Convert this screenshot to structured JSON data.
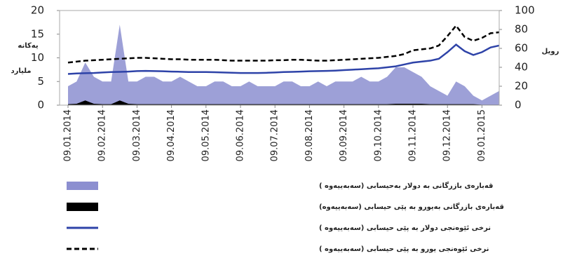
{
  "chart_data": {
    "type": "area-line",
    "y_label_lines": [
      "یەکانە",
      "ملیارد"
    ],
    "y2_label": "رویل",
    "categories": [
      "09.01.2014",
      null,
      null,
      null,
      "09.02.2014",
      null,
      null,
      null,
      "09.03.2014",
      null,
      null,
      null,
      "09.04.2014",
      null,
      null,
      null,
      "09.05.2014",
      null,
      null,
      null,
      "09.06.2014",
      null,
      null,
      null,
      "09.07.2014",
      null,
      null,
      null,
      "09.08.2014",
      null,
      null,
      null,
      "09.09.2014",
      null,
      null,
      null,
      "09.10.2014",
      null,
      null,
      null,
      "09.11.2014",
      null,
      null,
      null,
      "09.12.2014",
      null,
      null,
      null,
      "09.01.2015",
      null,
      null
    ],
    "ylim": [
      0,
      20
    ],
    "yticks": [
      0,
      5,
      10,
      15,
      20
    ],
    "y2lim": [
      0,
      100
    ],
    "y2ticks": [
      0,
      20,
      40,
      60,
      80,
      100
    ],
    "series": [
      {
        "name": "قەبارەی بازرگانی بە دولار بەحیسابی (سەبەییەوە )",
        "kind": "area",
        "color": "#8c8fd0",
        "values": [
          4,
          5,
          9,
          6,
          5,
          5,
          17,
          5,
          5,
          6,
          6,
          5,
          5,
          6,
          5,
          4,
          4,
          5,
          5,
          4,
          4,
          5,
          4,
          4,
          4,
          5,
          5,
          4,
          4,
          5,
          4,
          5,
          5,
          5,
          6,
          5,
          5,
          6,
          8,
          8,
          7,
          6,
          4,
          3,
          2,
          5,
          4,
          2,
          1,
          2,
          3
        ]
      },
      {
        "name": "قەبارەی بازرگانی بەیورو بە پێی حیسابی (سەبەییەوە)",
        "kind": "area",
        "color": "#000000",
        "values": [
          0.2,
          0.3,
          1,
          0.3,
          0.2,
          0.2,
          1,
          0.3,
          0.2,
          0.2,
          0.2,
          0.2,
          0.2,
          0.2,
          0.2,
          0.2,
          0.2,
          0.2,
          0.2,
          0.2,
          0.2,
          0.2,
          0.2,
          0.2,
          0.2,
          0.2,
          0.2,
          0.2,
          0.2,
          0.2,
          0.2,
          0.2,
          0.2,
          0.2,
          0.2,
          0.2,
          0.2,
          0.2,
          0.3,
          0.3,
          0.3,
          0.3,
          0.2,
          0.2,
          0.2,
          0.2,
          0.2,
          0.2,
          0.1,
          0.1,
          0.1
        ]
      },
      {
        "name": "نرخی ئێوەنجی دولار بە پێی حیسابی (سەبەییەوە )",
        "kind": "line",
        "axis": "y2",
        "color": "#2e43a8",
        "values": [
          33,
          33.5,
          33.8,
          34,
          34.5,
          35,
          35.2,
          35.5,
          36,
          36.2,
          36,
          35.8,
          35.5,
          35.3,
          35,
          35,
          35,
          34.8,
          34.5,
          34.3,
          34,
          34,
          34,
          34.2,
          34.5,
          35,
          35.2,
          35.5,
          35.8,
          36,
          36.2,
          36.5,
          37,
          37.5,
          38,
          38.5,
          39,
          40,
          41,
          43,
          45,
          46,
          47,
          49,
          56,
          64,
          57,
          53,
          56,
          61,
          63
        ]
      },
      {
        "name": "نرخی ئێوەنجی یورو بە پێی حیسابی (سەبەییەوە )",
        "kind": "dashed",
        "axis": "y2",
        "color": "#000000",
        "values": [
          45,
          46,
          47,
          47.5,
          48,
          48.5,
          49,
          49.5,
          50,
          50,
          49.5,
          49,
          48.5,
          48.5,
          48,
          48,
          48,
          48,
          47.5,
          47,
          47,
          47,
          47,
          47,
          47.5,
          47.5,
          48,
          48,
          47.5,
          47,
          47,
          47.5,
          48,
          48.5,
          49,
          49.5,
          50,
          51,
          52,
          54,
          58,
          59,
          60,
          63,
          73,
          84,
          72,
          68,
          71,
          76,
          77
        ]
      }
    ]
  }
}
